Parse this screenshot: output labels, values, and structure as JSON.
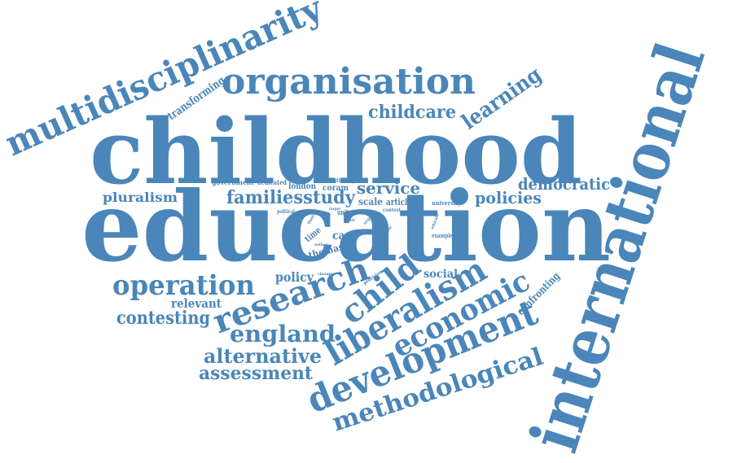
{
  "colors": {
    "word": "#4a86b9",
    "background": "#ffffff"
  },
  "words": {
    "childhood": "childhood",
    "education": "education",
    "international": "international",
    "multidisciplinarity": "multidisciplinarity",
    "organisation": "organisation",
    "research": "research",
    "development": "development",
    "liberalism": "liberalism",
    "economic": "economic",
    "child": "child",
    "operation": "operation",
    "methodological": "methodological",
    "england": "england",
    "alternative": "alternative",
    "assessment": "assessment",
    "contesting": "contesting",
    "relevant": "relevant",
    "policy": "policy",
    "social": "social",
    "confronting": "confronting",
    "childcare": "childcare",
    "learning": "learning",
    "transforming": "transforming",
    "pluralism": "pluralism",
    "familiesstudy": "familiesstudy",
    "service": "service",
    "democratic": "democratic",
    "policies": "policies",
    "government": "government",
    "dedicated": "dedicated",
    "london": "london",
    "attention": "attention",
    "coram": "coram",
    "system": "system",
    "scale": "scale",
    "article": "article",
    "university": "university",
    "context": "context",
    "unit": "unit",
    "political": "political",
    "target": "target",
    "time": "time",
    "care": "care",
    "thomas": "thomas",
    "young": "young",
    "argue": "argue",
    "life": "life",
    "score": "score",
    "example": "example",
    "educate": "educate",
    "problem": "problem",
    "provision": "provision",
    "change": "change",
    "theory": "theory",
    "author": "author"
  }
}
